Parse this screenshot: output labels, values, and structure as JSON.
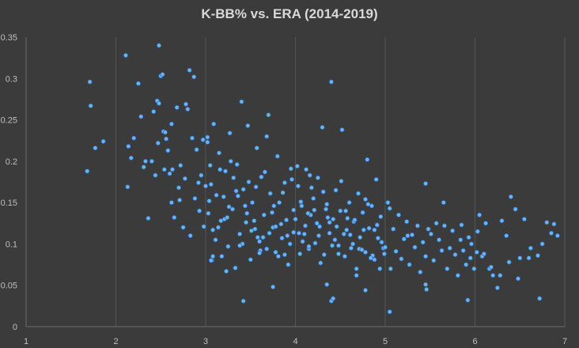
{
  "chart_data": {
    "type": "scatter",
    "title": "K-BB% vs. ERA (2014-2019)",
    "xlabel": "",
    "ylabel": "",
    "xlim": [
      1,
      7
    ],
    "ylim": [
      0,
      0.35
    ],
    "x_ticks": [
      "1",
      "2",
      "3",
      "4",
      "5",
      "6",
      "7"
    ],
    "y_ticks": [
      "0",
      "0.05",
      "0.1",
      "0.15",
      "0.2",
      "0.25",
      "0.3",
      "0.35"
    ],
    "gridlines": "vertical",
    "point_color": "#6fb3f0",
    "series": [
      {
        "x": [
          1.68,
          1.71,
          1.72,
          1.77,
          1.86,
          2.11,
          2.13,
          2.14,
          2.17,
          2.2,
          2.25,
          2.28,
          2.31,
          2.33,
          2.36,
          2.4,
          2.44,
          2.46,
          2.48,
          2.5,
          2.52,
          2.54,
          2.56,
          2.58,
          2.6,
          2.62,
          2.65,
          2.68,
          2.7,
          2.72,
          2.75,
          2.78,
          2.8,
          2.82,
          2.85,
          2.88,
          2.9,
          2.93,
          2.95,
          2.98,
          2.42,
          2.47,
          2.53,
          2.63,
          2.71,
          2.77,
          2.83,
          2.87,
          2.92,
          2.97,
          3.0,
          3.03,
          3.05,
          3.07,
          3.09,
          3.12,
          3.15,
          3.17,
          3.2,
          3.22,
          3.25,
          3.27,
          3.3,
          3.33,
          3.35,
          3.38,
          3.4,
          3.42,
          3.45,
          3.47,
          3.5,
          3.52,
          3.55,
          3.57,
          3.6,
          3.62,
          3.65,
          3.68,
          3.7,
          3.72,
          3.75,
          3.78,
          3.8,
          3.82,
          3.85,
          3.88,
          3.9,
          3.92,
          3.95,
          3.98,
          3.02,
          3.06,
          3.11,
          3.16,
          3.21,
          3.26,
          3.31,
          3.36,
          3.41,
          3.46,
          3.51,
          3.56,
          3.61,
          3.66,
          3.71,
          3.76,
          3.81,
          3.86,
          3.91,
          3.96,
          3.04,
          3.14,
          3.24,
          3.34,
          3.44,
          3.54,
          3.64,
          3.74,
          3.84,
          3.94,
          3.08,
          3.18,
          3.28,
          3.38,
          3.48,
          3.58,
          3.68,
          3.78,
          3.88,
          3.98,
          4.0,
          4.03,
          4.05,
          4.07,
          4.1,
          4.12,
          4.15,
          4.17,
          4.2,
          4.22,
          4.25,
          4.27,
          4.3,
          4.32,
          4.35,
          4.38,
          4.4,
          4.42,
          4.45,
          4.48,
          4.5,
          4.52,
          4.55,
          4.57,
          4.6,
          4.62,
          4.65,
          4.68,
          4.7,
          4.72,
          4.75,
          4.78,
          4.8,
          4.82,
          4.85,
          4.88,
          4.9,
          4.92,
          4.95,
          4.98,
          4.02,
          4.06,
          4.11,
          4.16,
          4.21,
          4.26,
          4.31,
          4.36,
          4.41,
          4.46,
          4.51,
          4.56,
          4.61,
          4.66,
          4.71,
          4.76,
          4.81,
          4.86,
          4.91,
          4.96,
          4.04,
          4.14,
          4.24,
          4.34,
          4.44,
          4.54,
          4.64,
          4.74,
          4.84,
          4.94,
          4.08,
          4.18,
          4.28,
          4.38,
          4.48,
          4.58,
          4.68,
          4.78,
          4.88,
          4.99,
          5.0,
          5.03,
          5.06,
          5.09,
          5.12,
          5.15,
          5.18,
          5.21,
          5.24,
          5.27,
          5.3,
          5.33,
          5.36,
          5.39,
          5.42,
          5.45,
          5.48,
          5.51,
          5.54,
          5.57,
          5.6,
          5.63,
          5.66,
          5.69,
          5.72,
          5.75,
          5.78,
          5.81,
          5.84,
          5.87,
          5.9,
          5.93,
          5.96,
          5.99,
          5.05,
          5.25,
          5.45,
          5.65,
          5.85,
          5.95,
          6.02,
          6.05,
          6.08,
          6.12,
          6.16,
          6.2,
          6.25,
          6.3,
          6.35,
          6.4,
          6.45,
          6.5,
          6.55,
          6.62,
          6.7,
          6.75,
          6.8,
          6.85,
          6.92,
          6.03,
          6.1,
          6.18,
          6.28,
          6.38,
          6.48,
          6.6,
          6.72,
          6.88,
          3.42,
          4.4,
          4.42,
          5.92,
          6.72,
          3.06,
          3.08,
          3.75,
          4.78,
          5.05,
          5.45,
          5.46,
          4.35,
          4.15,
          3.6,
          3.23,
          3.02,
          2.62,
          2.55,
          2.48
        ],
        "y": [
          0.188,
          0.296,
          0.267,
          0.216,
          0.224,
          0.328,
          0.169,
          0.218,
          0.204,
          0.228,
          0.294,
          0.254,
          0.193,
          0.2,
          0.131,
          0.2,
          0.183,
          0.273,
          0.34,
          0.303,
          0.305,
          0.19,
          0.227,
          0.213,
          0.185,
          0.15,
          0.132,
          0.265,
          0.168,
          0.195,
          0.12,
          0.269,
          0.263,
          0.31,
          0.228,
          0.155,
          0.214,
          0.14,
          0.183,
          0.121,
          0.26,
          0.222,
          0.236,
          0.19,
          0.153,
          0.179,
          0.11,
          0.302,
          0.174,
          0.226,
          0.17,
          0.137,
          0.195,
          0.08,
          0.245,
          0.159,
          0.21,
          0.128,
          0.157,
          0.188,
          0.097,
          0.234,
          0.142,
          0.071,
          0.196,
          0.112,
          0.272,
          0.166,
          0.126,
          0.243,
          0.081,
          0.15,
          0.118,
          0.216,
          0.103,
          0.181,
          0.135,
          0.094,
          0.256,
          0.161,
          0.12,
          0.09,
          0.206,
          0.15,
          0.107,
          0.174,
          0.129,
          0.075,
          0.191,
          0.141,
          0.223,
          0.172,
          0.105,
          0.19,
          0.13,
          0.145,
          0.18,
          0.158,
          0.1,
          0.137,
          0.116,
          0.169,
          0.092,
          0.187,
          0.113,
          0.146,
          0.085,
          0.162,
          0.11,
          0.178,
          0.152,
          0.12,
          0.132,
          0.164,
          0.146,
          0.128,
          0.108,
          0.138,
          0.124,
          0.1,
          0.117,
          0.085,
          0.2,
          0.098,
          0.175,
          0.108,
          0.23,
          0.121,
          0.087,
          0.114,
          0.13,
          0.17,
          0.088,
          0.146,
          0.112,
          0.19,
          0.094,
          0.135,
          0.155,
          0.101,
          0.18,
          0.121,
          0.241,
          0.087,
          0.148,
          0.113,
          0.296,
          0.13,
          0.165,
          0.098,
          0.14,
          0.238,
          0.085,
          0.117,
          0.15,
          0.095,
          0.127,
          0.07,
          0.161,
          0.108,
          0.138,
          0.09,
          0.202,
          0.119,
          0.146,
          0.081,
          0.178,
          0.107,
          0.133,
          0.095,
          0.194,
          0.151,
          0.122,
          0.183,
          0.141,
          0.11,
          0.163,
          0.132,
          0.098,
          0.121,
          0.176,
          0.14,
          0.111,
          0.129,
          0.094,
          0.117,
          0.148,
          0.086,
          0.123,
          0.102,
          0.113,
          0.137,
          0.125,
          0.142,
          0.105,
          0.112,
          0.1,
          0.093,
          0.083,
          0.07,
          0.103,
          0.168,
          0.077,
          0.126,
          0.088,
          0.131,
          0.062,
          0.154,
          0.117,
          0.088,
          0.096,
          0.15,
          0.07,
          0.118,
          0.091,
          0.135,
          0.082,
          0.106,
          0.127,
          0.075,
          0.111,
          0.096,
          0.122,
          0.066,
          0.102,
          0.085,
          0.118,
          0.112,
          0.08,
          0.125,
          0.105,
          0.092,
          0.122,
          0.07,
          0.095,
          0.116,
          0.087,
          0.062,
          0.105,
          0.092,
          0.075,
          0.108,
          0.1,
          0.07,
          0.143,
          0.11,
          0.173,
          0.15,
          0.123,
          0.083,
          0.09,
          0.135,
          0.085,
          0.125,
          0.07,
          0.062,
          0.047,
          0.128,
          0.11,
          0.157,
          0.142,
          0.083,
          0.13,
          0.095,
          0.086,
          0.1,
          0.126,
          0.113,
          0.11,
          0.115,
          0.088,
          0.072,
          0.062,
          0.078,
          0.058,
          0.083,
          0.034,
          0.124,
          0.031,
          0.031,
          0.034,
          0.032,
          0.034,
          0.08,
          0.085,
          0.048,
          0.044,
          0.018,
          0.051,
          0.045,
          0.051,
          0.097,
          0.089,
          0.067,
          0.229,
          0.245,
          0.235,
          0.27
        ]
      }
    ]
  }
}
